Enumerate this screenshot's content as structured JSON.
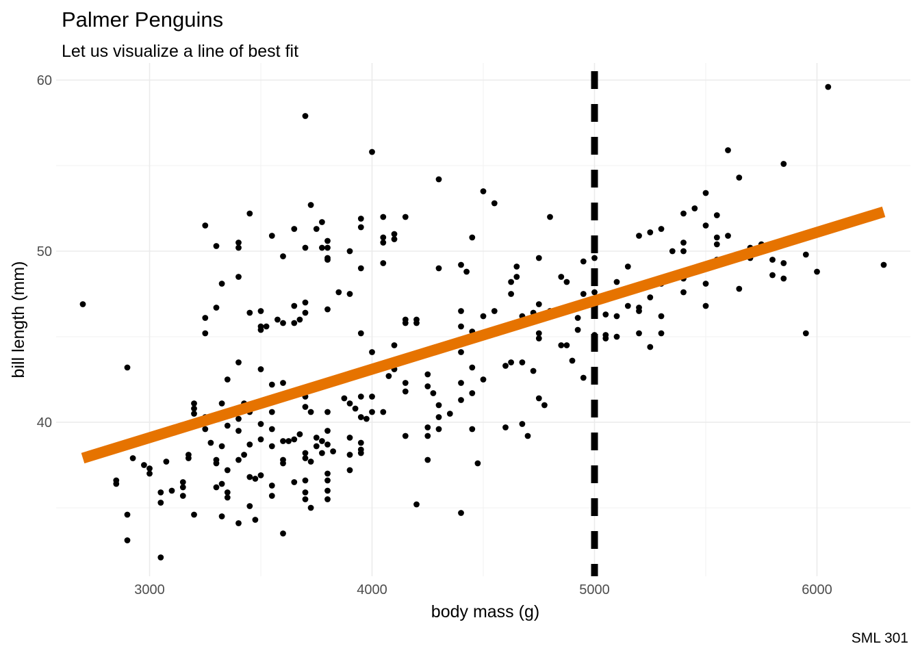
{
  "chart_data": {
    "type": "scatter",
    "title": "Palmer Penguins",
    "subtitle": "Let us visualize a line of best fit",
    "caption": "SML 301",
    "xlabel": "body mass (g)",
    "ylabel": "bill length (mm)",
    "xlim": [
      2580,
      6420
    ],
    "ylim": [
      31,
      61
    ],
    "x_ticks": [
      3000,
      4000,
      5000,
      6000
    ],
    "y_ticks": [
      40,
      50,
      60
    ],
    "grid": true,
    "vline": {
      "x": 5000,
      "style": "dashed",
      "color": "#000000"
    },
    "fit_line": {
      "x": [
        2700,
        6300
      ],
      "y": [
        37.9,
        52.3
      ],
      "color": "#e67300"
    },
    "point_color": "#000000",
    "points": [
      [
        2700,
        46.9
      ],
      [
        2850,
        36.4
      ],
      [
        2850,
        36.6
      ],
      [
        2900,
        43.2
      ],
      [
        2900,
        34.6
      ],
      [
        2900,
        33.1
      ],
      [
        2925,
        37.9
      ],
      [
        2975,
        37.5
      ],
      [
        3000,
        37.3
      ],
      [
        3000,
        37.0
      ],
      [
        3050,
        35.9
      ],
      [
        3050,
        35.3
      ],
      [
        3050,
        32.1
      ],
      [
        3075,
        37.7
      ],
      [
        3100,
        36.0
      ],
      [
        3150,
        39.7
      ],
      [
        3150,
        36.5
      ],
      [
        3150,
        36.2
      ],
      [
        3150,
        35.7
      ],
      [
        3175,
        37.9
      ],
      [
        3175,
        38.1
      ],
      [
        3200,
        40.5
      ],
      [
        3200,
        41.1
      ],
      [
        3200,
        40.8
      ],
      [
        3200,
        34.6
      ],
      [
        3250,
        51.5
      ],
      [
        3250,
        46.1
      ],
      [
        3250,
        45.2
      ],
      [
        3250,
        39.6
      ],
      [
        3250,
        40.3
      ],
      [
        3275,
        38.8
      ],
      [
        3300,
        50.3
      ],
      [
        3300,
        46.7
      ],
      [
        3300,
        37.8
      ],
      [
        3300,
        36.2
      ],
      [
        3300,
        37.6
      ],
      [
        3325,
        48.1
      ],
      [
        3325,
        41.1
      ],
      [
        3325,
        38.6
      ],
      [
        3325,
        36.4
      ],
      [
        3325,
        34.5
      ],
      [
        3350,
        42.5
      ],
      [
        3350,
        39.8
      ],
      [
        3350,
        37.2
      ],
      [
        3350,
        35.9
      ],
      [
        3350,
        35.6
      ],
      [
        3400,
        50.5
      ],
      [
        3400,
        50.2
      ],
      [
        3400,
        48.5
      ],
      [
        3400,
        43.5
      ],
      [
        3400,
        40.2
      ],
      [
        3400,
        39.5
      ],
      [
        3400,
        37.8
      ],
      [
        3400,
        34.1
      ],
      [
        3425,
        41.1
      ],
      [
        3425,
        38.1
      ],
      [
        3450,
        52.2
      ],
      [
        3450,
        46.4
      ],
      [
        3450,
        40.6
      ],
      [
        3450,
        38.7
      ],
      [
        3450,
        36.8
      ],
      [
        3450,
        35.1
      ],
      [
        3475,
        36.7
      ],
      [
        3475,
        34.3
      ],
      [
        3500,
        46.5
      ],
      [
        3500,
        45.6
      ],
      [
        3500,
        45.4
      ],
      [
        3500,
        43.1
      ],
      [
        3500,
        39.9
      ],
      [
        3500,
        39.0
      ],
      [
        3500,
        36.9
      ],
      [
        3525,
        45.6
      ],
      [
        3550,
        50.9
      ],
      [
        3550,
        42.2
      ],
      [
        3550,
        40.6
      ],
      [
        3550,
        39.6
      ],
      [
        3550,
        38.6
      ],
      [
        3550,
        36.3
      ],
      [
        3550,
        35.7
      ],
      [
        3575,
        46.0
      ],
      [
        3600,
        49.7
      ],
      [
        3600,
        45.8
      ],
      [
        3600,
        42.3
      ],
      [
        3600,
        38.9
      ],
      [
        3600,
        37.8
      ],
      [
        3600,
        37.6
      ],
      [
        3600,
        33.5
      ],
      [
        3625,
        38.9
      ],
      [
        3650,
        51.3
      ],
      [
        3650,
        46.8
      ],
      [
        3650,
        45.8
      ],
      [
        3650,
        39.0
      ],
      [
        3650,
        36.5
      ],
      [
        3675,
        46.0
      ],
      [
        3675,
        39.3
      ],
      [
        3700,
        57.9
      ],
      [
        3700,
        50.2
      ],
      [
        3700,
        47.0
      ],
      [
        3700,
        46.4
      ],
      [
        3700,
        41.5
      ],
      [
        3700,
        40.9
      ],
      [
        3700,
        38.2
      ],
      [
        3700,
        37.9
      ],
      [
        3700,
        36.6
      ],
      [
        3700,
        35.9
      ],
      [
        3700,
        35.5
      ],
      [
        3725,
        52.7
      ],
      [
        3725,
        40.6
      ],
      [
        3725,
        37.7
      ],
      [
        3725,
        35.0
      ],
      [
        3750,
        51.3
      ],
      [
        3750,
        39.1
      ],
      [
        3750,
        38.6
      ],
      [
        3775,
        51.7
      ],
      [
        3775,
        50.2
      ],
      [
        3775,
        38.9
      ],
      [
        3775,
        38.2
      ],
      [
        3800,
        50.6
      ],
      [
        3800,
        50.2
      ],
      [
        3800,
        49.6
      ],
      [
        3800,
        49.5
      ],
      [
        3800,
        46.6
      ],
      [
        3800,
        40.6
      ],
      [
        3800,
        39.5
      ],
      [
        3800,
        38.7
      ],
      [
        3800,
        37.0
      ],
      [
        3800,
        36.6
      ],
      [
        3800,
        36.0
      ],
      [
        3800,
        35.5
      ],
      [
        3825,
        38.3
      ],
      [
        3850,
        47.6
      ],
      [
        3875,
        41.4
      ],
      [
        3900,
        50.0
      ],
      [
        3900,
        47.5
      ],
      [
        3900,
        41.1
      ],
      [
        3900,
        39.1
      ],
      [
        3900,
        38.1
      ],
      [
        3900,
        37.2
      ],
      [
        3925,
        40.8
      ],
      [
        3950,
        51.9
      ],
      [
        3950,
        51.4
      ],
      [
        3950,
        49.0
      ],
      [
        3950,
        45.2
      ],
      [
        3950,
        41.5
      ],
      [
        3950,
        40.3
      ],
      [
        3950,
        38.8
      ],
      [
        3950,
        38.2
      ],
      [
        3950,
        38.4
      ],
      [
        3975,
        40.2
      ],
      [
        4000,
        55.8
      ],
      [
        4000,
        44.1
      ],
      [
        4000,
        41.5
      ],
      [
        4000,
        40.6
      ],
      [
        4050,
        52.0
      ],
      [
        4050,
        50.8
      ],
      [
        4050,
        50.5
      ],
      [
        4050,
        49.3
      ],
      [
        4050,
        40.6
      ],
      [
        4075,
        42.7
      ],
      [
        4100,
        51.0
      ],
      [
        4100,
        50.7
      ],
      [
        4100,
        44.5
      ],
      [
        4100,
        43.1
      ],
      [
        4150,
        52.0
      ],
      [
        4150,
        46.0
      ],
      [
        4150,
        45.8
      ],
      [
        4150,
        42.3
      ],
      [
        4150,
        41.8
      ],
      [
        4150,
        39.2
      ],
      [
        4200,
        46.0
      ],
      [
        4200,
        45.8
      ],
      [
        4200,
        35.2
      ],
      [
        4250,
        42.8
      ],
      [
        4250,
        42.1
      ],
      [
        4250,
        39.7
      ],
      [
        4250,
        39.2
      ],
      [
        4250,
        37.8
      ],
      [
        4275,
        41.7
      ],
      [
        4300,
        54.2
      ],
      [
        4300,
        49.0
      ],
      [
        4300,
        41.0
      ],
      [
        4300,
        40.3
      ],
      [
        4300,
        39.6
      ],
      [
        4350,
        44.5
      ],
      [
        4350,
        40.5
      ],
      [
        4400,
        49.2
      ],
      [
        4400,
        46.5
      ],
      [
        4400,
        45.6
      ],
      [
        4400,
        44.1
      ],
      [
        4400,
        42.3
      ],
      [
        4400,
        41.3
      ],
      [
        4400,
        34.7
      ],
      [
        4425,
        48.8
      ],
      [
        4450,
        50.8
      ],
      [
        4450,
        45.3
      ],
      [
        4450,
        43.2
      ],
      [
        4450,
        41.7
      ],
      [
        4450,
        39.6
      ],
      [
        4475,
        37.6
      ],
      [
        4500,
        53.5
      ],
      [
        4500,
        46.2
      ],
      [
        4500,
        42.5
      ],
      [
        4550,
        52.8
      ],
      [
        4550,
        46.5
      ],
      [
        4600,
        43.3
      ],
      [
        4600,
        39.7
      ],
      [
        4625,
        48.2
      ],
      [
        4625,
        47.5
      ],
      [
        4625,
        43.5
      ],
      [
        4650,
        49.1
      ],
      [
        4650,
        48.5
      ],
      [
        4675,
        46.2
      ],
      [
        4675,
        43.5
      ],
      [
        4675,
        39.9
      ],
      [
        4700,
        45.8
      ],
      [
        4700,
        39.2
      ],
      [
        4725,
        46.4
      ],
      [
        4725,
        43.0
      ],
      [
        4750,
        49.6
      ],
      [
        4750,
        46.9
      ],
      [
        4750,
        45.2
      ],
      [
        4750,
        44.9
      ],
      [
        4750,
        41.4
      ],
      [
        4775,
        41.0
      ],
      [
        4800,
        52.0
      ],
      [
        4800,
        46.5
      ],
      [
        4850,
        48.5
      ],
      [
        4850,
        46.5
      ],
      [
        4850,
        44.5
      ],
      [
        4875,
        48.2
      ],
      [
        4875,
        44.5
      ],
      [
        4900,
        46.8
      ],
      [
        4900,
        43.6
      ],
      [
        4925,
        46.1
      ],
      [
        4925,
        45.4
      ],
      [
        4950,
        49.4
      ],
      [
        4950,
        47.5
      ],
      [
        4950,
        42.6
      ],
      [
        5000,
        49.6
      ],
      [
        5000,
        47.6
      ],
      [
        5000,
        46.9
      ],
      [
        5000,
        45.1
      ],
      [
        5050,
        46.3
      ],
      [
        5050,
        45.1
      ],
      [
        5050,
        44.9
      ],
      [
        5100,
        48.2
      ],
      [
        5100,
        46.2
      ],
      [
        5100,
        45.0
      ],
      [
        5150,
        49.1
      ],
      [
        5150,
        46.8
      ],
      [
        5200,
        50.9
      ],
      [
        5200,
        46.7
      ],
      [
        5200,
        46.5
      ],
      [
        5200,
        45.2
      ],
      [
        5250,
        51.1
      ],
      [
        5250,
        47.3
      ],
      [
        5250,
        44.4
      ],
      [
        5300,
        51.3
      ],
      [
        5300,
        48.1
      ],
      [
        5300,
        46.2
      ],
      [
        5300,
        45.2
      ],
      [
        5350,
        50.0
      ],
      [
        5400,
        52.2
      ],
      [
        5400,
        50.5
      ],
      [
        5400,
        50.0
      ],
      [
        5400,
        48.4
      ],
      [
        5400,
        47.6
      ],
      [
        5450,
        52.5
      ],
      [
        5500,
        53.4
      ],
      [
        5500,
        51.5
      ],
      [
        5500,
        48.1
      ],
      [
        5500,
        46.8
      ],
      [
        5550,
        52.1
      ],
      [
        5550,
        50.8
      ],
      [
        5550,
        50.4
      ],
      [
        5550,
        49.5
      ],
      [
        5600,
        55.9
      ],
      [
        5600,
        50.9
      ],
      [
        5650,
        54.3
      ],
      [
        5650,
        47.8
      ],
      [
        5700,
        50.2
      ],
      [
        5700,
        49.6
      ],
      [
        5750,
        50.4
      ],
      [
        5800,
        49.5
      ],
      [
        5800,
        48.6
      ],
      [
        5850,
        55.1
      ],
      [
        5850,
        49.3
      ],
      [
        5850,
        48.4
      ],
      [
        5950,
        49.8
      ],
      [
        5950,
        45.2
      ],
      [
        6000,
        48.8
      ],
      [
        6050,
        59.6
      ],
      [
        6300,
        49.2
      ]
    ]
  }
}
